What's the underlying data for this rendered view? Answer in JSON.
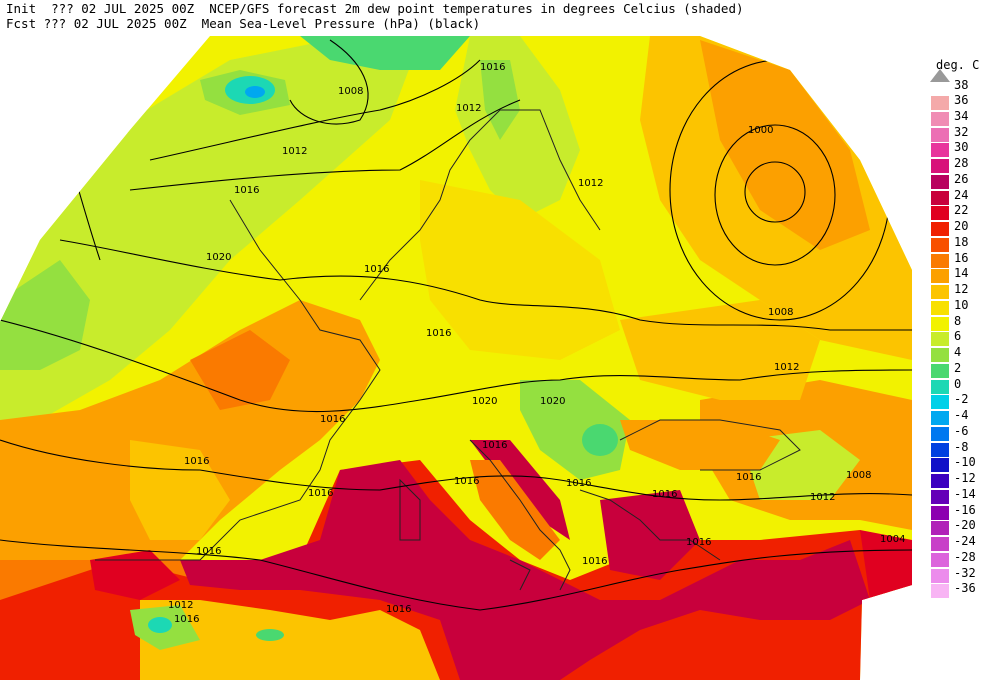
{
  "header": {
    "init_line": "Init  ??? 02 JUL 2025 00Z  NCEP/GFS forecast 2m dew point temperatures in degrees Celcius (shaded)",
    "fcst_line": "Fcst ??? 02 JUL 2025 00Z  Mean Sea-Level Pressure (hPa) (black)"
  },
  "legend": {
    "unit": "deg. C",
    "max_label": "38",
    "items": [
      {
        "label": "36",
        "color": "#f4a9a9"
      },
      {
        "label": "34",
        "color": "#f08cb4"
      },
      {
        "label": "32",
        "color": "#ec6fb4"
      },
      {
        "label": "30",
        "color": "#e8349c"
      },
      {
        "label": "28",
        "color": "#d8127a"
      },
      {
        "label": "26",
        "color": "#b8005e"
      },
      {
        "label": "24",
        "color": "#c8003c"
      },
      {
        "label": "22",
        "color": "#e00020"
      },
      {
        "label": "20",
        "color": "#f02000"
      },
      {
        "label": "18",
        "color": "#f85000"
      },
      {
        "label": "16",
        "color": "#fa7a00"
      },
      {
        "label": "14",
        "color": "#fca000"
      },
      {
        "label": "12",
        "color": "#fcc400"
      },
      {
        "label": "10",
        "color": "#f8e000"
      },
      {
        "label": "8",
        "color": "#f2f200"
      },
      {
        "label": "6",
        "color": "#c8ec2c"
      },
      {
        "label": "4",
        "color": "#94e040"
      },
      {
        "label": "2",
        "color": "#4ad870"
      },
      {
        "label": "0",
        "color": "#1cd8b4"
      },
      {
        "label": "-2",
        "color": "#00d0e8"
      },
      {
        "label": "-4",
        "color": "#00a8f0"
      },
      {
        "label": "-6",
        "color": "#0078f0"
      },
      {
        "label": "-8",
        "color": "#0040e0"
      },
      {
        "label": "-10",
        "color": "#1010c8"
      },
      {
        "label": "-12",
        "color": "#3c00c0"
      },
      {
        "label": "-14",
        "color": "#6400b8"
      },
      {
        "label": "-16",
        "color": "#8c00b0"
      },
      {
        "label": "-20",
        "color": "#b020b8"
      },
      {
        "label": "-24",
        "color": "#c840c8"
      },
      {
        "label": "-28",
        "color": "#dc64dc"
      },
      {
        "label": "-32",
        "color": "#ec8cec"
      },
      {
        "label": "-36",
        "color": "#f8b4f4"
      }
    ]
  },
  "isobar_labels": [
    "1008",
    "1012",
    "1016",
    "1020",
    "1016",
    "1016",
    "1016",
    "1016",
    "1016",
    "1020",
    "1020",
    "1016",
    "1016",
    "1016",
    "1016",
    "1016",
    "1016",
    "1012",
    "1016",
    "1008",
    "1012",
    "1000",
    "1012",
    "1008",
    "1012",
    "1004",
    "1016",
    "1016",
    "1016",
    "1012",
    "1016"
  ]
}
